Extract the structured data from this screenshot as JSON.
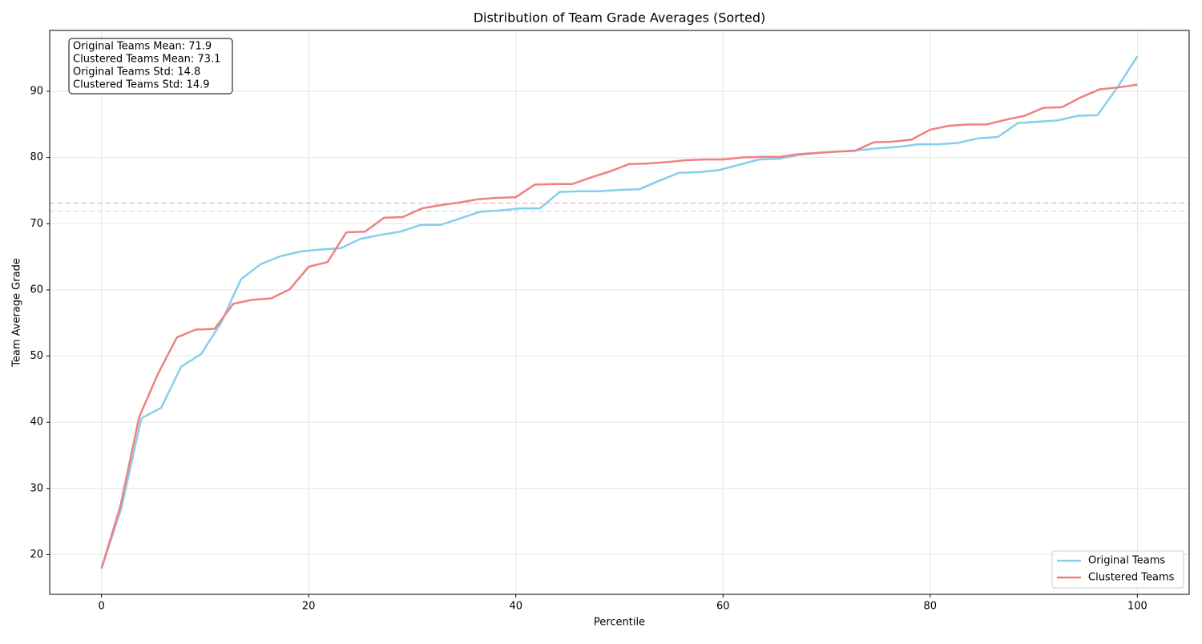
{
  "chart_data": {
    "type": "line",
    "title": "Distribution of Team Grade Averages (Sorted)",
    "xlabel": "Percentile",
    "ylabel": "Team Average Grade",
    "xlim": [
      -5,
      105
    ],
    "ylim": [
      14.0,
      99.2
    ],
    "xticks": [
      0,
      20,
      40,
      60,
      80,
      100
    ],
    "yticks": [
      20,
      30,
      40,
      50,
      60,
      70,
      80,
      90
    ],
    "grid": true,
    "legend_loc": "lower right",
    "series": [
      {
        "name": "Original Teams",
        "color": "#87ceeb",
        "x": [
          0,
          1.92,
          3.85,
          5.77,
          7.69,
          9.62,
          11.54,
          13.46,
          15.38,
          17.31,
          19.23,
          21.15,
          23.08,
          25,
          26.92,
          28.85,
          30.77,
          32.69,
          34.62,
          36.54,
          38.46,
          40.38,
          42.31,
          44.23,
          46.15,
          48.08,
          50,
          51.92,
          53.85,
          55.77,
          57.69,
          59.62,
          61.54,
          63.46,
          65.38,
          67.31,
          69.23,
          71.15,
          73.08,
          75,
          76.92,
          78.85,
          80.77,
          82.69,
          84.62,
          86.54,
          88.46,
          90.38,
          92.31,
          94.23,
          96.15,
          98.08,
          100
        ],
        "values": [
          17.9,
          27.0,
          40.6,
          42.2,
          48.4,
          50.3,
          55.0,
          61.6,
          63.9,
          65.1,
          65.8,
          66.1,
          66.3,
          67.7,
          68.3,
          68.8,
          69.8,
          69.8,
          70.8,
          71.8,
          72.0,
          72.3,
          72.3,
          74.8,
          74.9,
          74.9,
          75.1,
          75.2,
          76.5,
          77.7,
          77.8,
          78.1,
          78.9,
          79.7,
          79.8,
          80.4,
          80.7,
          80.9,
          81.1,
          81.4,
          81.6,
          82.0,
          82.0,
          82.2,
          82.9,
          83.1,
          85.2,
          85.4,
          85.6,
          86.3,
          86.4,
          90.6,
          95.3
        ]
      },
      {
        "name": "Clustered Teams",
        "color": "#f08080",
        "x": [
          0,
          1.82,
          3.64,
          5.45,
          7.27,
          9.09,
          10.91,
          12.73,
          14.55,
          16.36,
          18.18,
          20,
          21.82,
          23.64,
          25.45,
          27.27,
          29.09,
          30.91,
          32.73,
          34.55,
          36.36,
          38.18,
          40,
          41.82,
          43.64,
          45.45,
          47.27,
          49.09,
          50.91,
          52.73,
          54.55,
          56.36,
          58.18,
          60,
          61.82,
          63.64,
          65.45,
          67.27,
          69.09,
          70.91,
          72.73,
          74.55,
          76.36,
          78.18,
          80,
          81.82,
          83.64,
          85.45,
          87.27,
          89.09,
          90.91,
          92.73,
          94.55,
          96.36,
          98.18,
          100
        ],
        "values": [
          17.9,
          27.3,
          40.8,
          47.3,
          52.8,
          54.0,
          54.1,
          57.9,
          58.5,
          58.7,
          60.1,
          63.5,
          64.2,
          68.7,
          68.8,
          70.9,
          71.0,
          72.3,
          72.8,
          73.2,
          73.7,
          73.9,
          74.0,
          75.9,
          76.0,
          76.0,
          77.0,
          77.9,
          79.0,
          79.1,
          79.3,
          79.6,
          79.7,
          79.7,
          80.0,
          80.1,
          80.1,
          80.5,
          80.7,
          80.9,
          81.0,
          82.3,
          82.4,
          82.7,
          84.2,
          84.8,
          85.0,
          85.0,
          85.7,
          86.3,
          87.5,
          87.6,
          89.1,
          90.3,
          90.6,
          91.0
        ]
      }
    ],
    "mean_lines": [
      {
        "value": 71.9,
        "color": "#87ceeb"
      },
      {
        "value": 73.1,
        "color": "#f08080"
      }
    ],
    "annotation": [
      "Original Teams Mean: 71.9",
      "Clustered Teams Mean: 73.1",
      "Original Teams Std: 14.8",
      "Clustered Teams Std: 14.9"
    ]
  }
}
